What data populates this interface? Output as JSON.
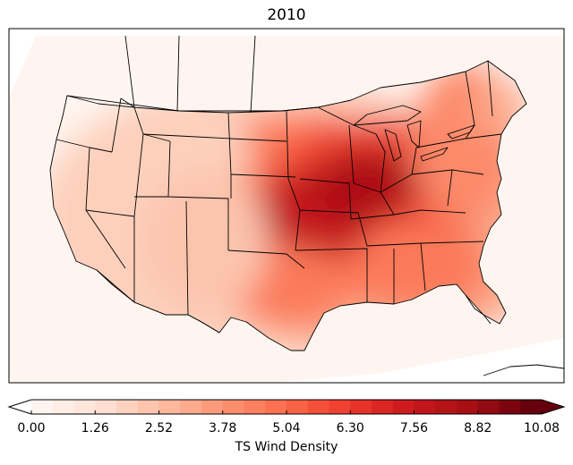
{
  "title": "2010",
  "colorbar": {
    "label": "TS Wind Density",
    "min": 0.0,
    "max": 10.08,
    "levels": 24,
    "extend": "both",
    "colormap": "Reds",
    "tick_labels": [
      "0.00",
      "1.26",
      "2.52",
      "3.78",
      "5.04",
      "6.30",
      "7.56",
      "8.82",
      "10.08"
    ]
  },
  "map": {
    "region": "Contiguous United States",
    "projection": "Lambert conformal conic",
    "features": [
      "coastlines",
      "country-borders",
      "state-borders",
      "great-lakes"
    ],
    "density_peak_region": "Kansas / Missouri / Illinois / Indiana"
  }
}
